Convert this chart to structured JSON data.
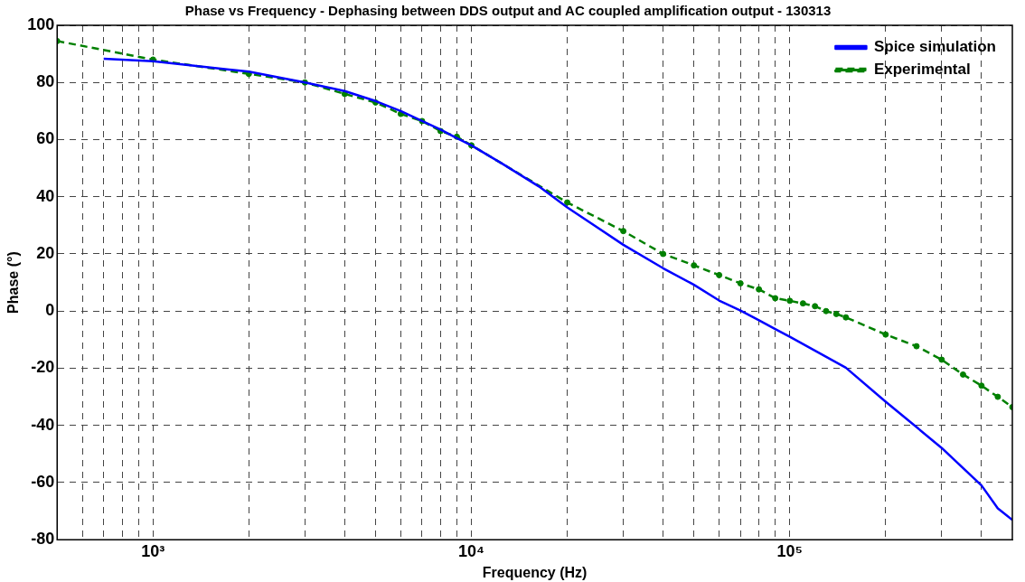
{
  "chart_data": {
    "type": "line",
    "title": "Phase vs Frequency - Dephasing between DDS output and AC coupled amplification output - 130313",
    "xlabel": "Frequency (Hz)",
    "ylabel": "Phase (°)",
    "log": "x",
    "xlim": [
      500,
      500000
    ],
    "ylim": [
      -80,
      100
    ],
    "xticks": [
      {
        "value": 600,
        "label": null
      },
      {
        "value": 700,
        "label": null
      },
      {
        "value": 800,
        "label": null
      },
      {
        "value": 900,
        "label": null
      },
      {
        "value": 1000,
        "label": "10³"
      },
      {
        "value": 2000,
        "label": null
      },
      {
        "value": 3000,
        "label": null
      },
      {
        "value": 4000,
        "label": null
      },
      {
        "value": 5000,
        "label": null
      },
      {
        "value": 6000,
        "label": null
      },
      {
        "value": 7000,
        "label": null
      },
      {
        "value": 8000,
        "label": null
      },
      {
        "value": 9000,
        "label": null
      },
      {
        "value": 10000,
        "label": "10⁴"
      },
      {
        "value": 20000,
        "label": null
      },
      {
        "value": 30000,
        "label": null
      },
      {
        "value": 40000,
        "label": null
      },
      {
        "value": 50000,
        "label": null
      },
      {
        "value": 60000,
        "label": null
      },
      {
        "value": 70000,
        "label": null
      },
      {
        "value": 80000,
        "label": null
      },
      {
        "value": 90000,
        "label": null
      },
      {
        "value": 100000,
        "label": "10⁵"
      },
      {
        "value": 200000,
        "label": null
      },
      {
        "value": 300000,
        "label": null
      },
      {
        "value": 400000,
        "label": null
      }
    ],
    "yticks": [
      -80,
      -60,
      -40,
      -20,
      0,
      20,
      40,
      60,
      80,
      100
    ],
    "grid": true,
    "legend": "top right",
    "series": [
      {
        "name": "Spice simulation",
        "color": "#0000ff",
        "marker": "none",
        "line_style": "solid",
        "x": [
          700,
          1000,
          2000,
          3000,
          4000,
          5000,
          6000,
          7000,
          8000,
          9000,
          10000,
          12500,
          16300,
          20000,
          30000,
          40000,
          50000,
          60000,
          70000,
          80000,
          90000,
          100000,
          150000,
          200000,
          300000,
          400000,
          450000,
          500000
        ],
        "values": [
          88.3,
          87.4,
          83.8,
          80,
          77,
          73.5,
          70,
          66.5,
          63.5,
          60.5,
          58,
          51.6,
          43.6,
          36.3,
          23.2,
          15,
          9.2,
          3.7,
          0.2,
          -3.2,
          -6.3,
          -9,
          -19.8,
          -31.7,
          -47.9,
          -61,
          -69,
          -73.1
        ]
      },
      {
        "name": "Experimental",
        "color": "#008000",
        "marker": "circle",
        "line_style": "dashed",
        "x": [
          500,
          1000,
          2000,
          3000,
          4000,
          5000,
          6000,
          7000,
          8000,
          9000,
          10000,
          20000,
          30000,
          40000,
          50000,
          60000,
          70000,
          80000,
          90000,
          100000,
          110000,
          120000,
          130000,
          140000,
          150000,
          200000,
          250000,
          300000,
          350000,
          400000,
          450000,
          500000
        ],
        "values": [
          94.5,
          88,
          83,
          80,
          76,
          73,
          69,
          66.5,
          63,
          61,
          58,
          38,
          28,
          20,
          16,
          12.6,
          9.7,
          7.6,
          4.5,
          3.6,
          2.7,
          1.7,
          0,
          -1,
          -2.2,
          -8.2,
          -12.3,
          -17,
          -22.2,
          -26.1,
          -30,
          -33.6
        ]
      }
    ]
  }
}
